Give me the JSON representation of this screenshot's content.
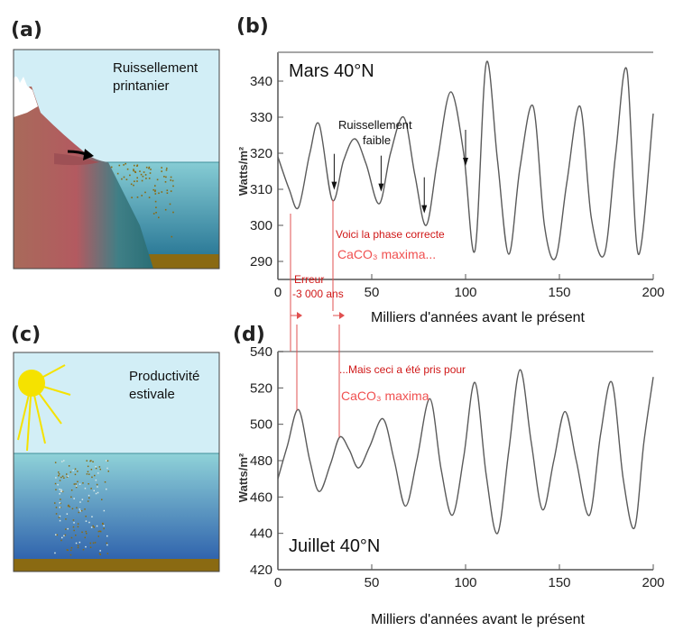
{
  "panels": {
    "a": {
      "letter": "(a)",
      "caption_line1": "Ruissellement",
      "caption_line2": "printanier"
    },
    "b": {
      "letter": "(b)"
    },
    "c": {
      "letter": "(c)",
      "caption_line1": "Productivité",
      "caption_line2": "estivale"
    },
    "d": {
      "letter": "(d)"
    }
  },
  "annotations": {
    "runoff_line1": "Ruissellement",
    "runoff_line2": "faible",
    "correct_phase": "Voici la phase correcte",
    "caco3_maxima_b": "CaCO₃ maxima...",
    "error_line1": "Erreur",
    "error_line2": "-3 000 ans",
    "taken_for": "...Mais ceci a été pris pour",
    "caco3_maxima_d": "CaCO₃ maxima"
  },
  "chart_data": [
    {
      "type": "line",
      "title": "Mars 40°N",
      "xlabel": "Milliers d'années avant le présent",
      "ylabel": "Watts/m²",
      "xlim": [
        0,
        200
      ],
      "ylim": [
        285,
        348
      ],
      "xticks": [
        0,
        50,
        100,
        150,
        200
      ],
      "yticks": [
        290,
        300,
        310,
        320,
        330,
        340
      ],
      "series": [
        {
          "x": [
            0,
            6,
            11,
            17,
            22,
            29,
            35,
            41,
            47,
            54,
            60,
            67,
            73,
            79,
            85,
            92,
            99,
            105,
            111,
            117,
            123,
            129,
            136,
            142,
            148,
            154,
            161,
            167,
            174,
            180,
            186,
            192,
            200
          ],
          "values": [
            319,
            310,
            305,
            320,
            328,
            307,
            318,
            324,
            317,
            306,
            320,
            330,
            314,
            300,
            318,
            337,
            320,
            293,
            345,
            318,
            292,
            316,
            333,
            300,
            291,
            312,
            333,
            302,
            292,
            320,
            343,
            292,
            331
          ]
        }
      ],
      "arrows_at_x": [
        30,
        55,
        78,
        100
      ]
    },
    {
      "type": "line",
      "title": "Juillet 40°N",
      "xlabel": "Milliers d'années avant le présent",
      "ylabel": "Watts/m²",
      "xlim": [
        0,
        200
      ],
      "ylim": [
        420,
        540
      ],
      "xticks": [
        0,
        50,
        100,
        150,
        200
      ],
      "yticks": [
        420,
        440,
        460,
        480,
        500,
        520,
        540
      ],
      "series": [
        {
          "x": [
            0,
            5,
            11,
            17,
            22,
            28,
            33,
            38,
            43,
            49,
            56,
            62,
            68,
            74,
            81,
            87,
            93,
            99,
            105,
            111,
            117,
            123,
            129,
            135,
            141,
            147,
            153,
            159,
            166,
            172,
            178,
            184,
            190,
            195,
            200
          ],
          "values": [
            470,
            488,
            508,
            480,
            463,
            478,
            493,
            486,
            476,
            488,
            503,
            480,
            455,
            480,
            514,
            475,
            450,
            482,
            523,
            472,
            440,
            485,
            530,
            490,
            453,
            480,
            507,
            480,
            450,
            495,
            523,
            470,
            443,
            490,
            526
          ]
        }
      ]
    }
  ]
}
